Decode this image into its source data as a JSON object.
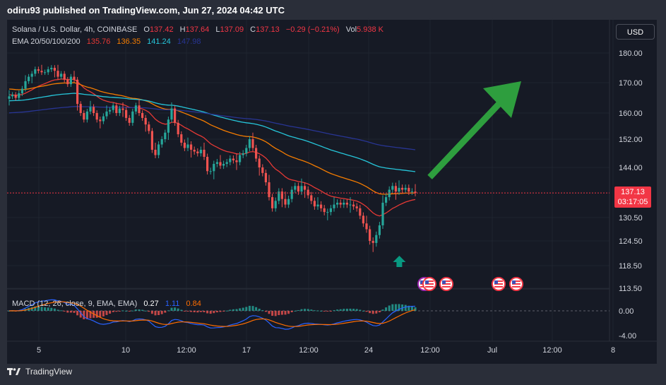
{
  "header": {
    "publisher": "odiru93 published on TradingView.com, Jun 27, 2024 04:42 UTC"
  },
  "legend": {
    "symbol": "Solana / U.S. Dollar, 4h, COINBASE",
    "o_label": "O",
    "o_value": "137.42",
    "h_label": "H",
    "h_value": "137.64",
    "l_label": "L",
    "l_value": "137.09",
    "c_label": "C",
    "c_value": "137.13",
    "change": "−0.29 (−0.21%)",
    "vol_label": "Vol",
    "vol_value": "5.938 K",
    "ema_label": "EMA 20/50/100/200",
    "ema_values": [
      "135.76",
      "136.35",
      "141.24",
      "147.98"
    ],
    "macd_label": "MACD (12, 26, close, 9, EMA, EMA)",
    "macd_values": [
      "0.27",
      "1.11",
      "0.84"
    ]
  },
  "currency_button": "USD",
  "price_tag": {
    "price": "137.13",
    "countdown": "03:17:05"
  },
  "footer": {
    "brand": "TradingView"
  },
  "colors": {
    "up": "#26a69a",
    "down": "#ef5350",
    "ema20": "#e53935",
    "ema50": "#f57c00",
    "ema100": "#26c6da",
    "ema200": "#283593",
    "arrow": "#2e9e3e",
    "macd_line": "#2962ff",
    "signal_line": "#ff6d00"
  },
  "chart_data": {
    "type": "candlestick",
    "title": "Solana / U.S. Dollar, 4h, COINBASE",
    "y_ticks": [
      "180.00",
      "170.00",
      "160.00",
      "152.00",
      "144.00",
      "130.50",
      "124.50",
      "118.50",
      "113.50"
    ],
    "macd_ticks": [
      "0.00",
      "-4.00"
    ],
    "x_ticks": [
      "5",
      "10",
      "12:00",
      "17",
      "12:00",
      "24",
      "12:00",
      "Jul",
      "12:00",
      "8"
    ],
    "ylim": [
      113.5,
      180
    ],
    "close": [
      165.5,
      166.0,
      165.0,
      166.5,
      168.0,
      170.5,
      172.0,
      173.0,
      174.5,
      174.0,
      173.5,
      173.5,
      174.5,
      175.0,
      174.0,
      172.0,
      173.0,
      171.0,
      169.5,
      172.0,
      171.0,
      163.0,
      160.0,
      158.0,
      160.5,
      162.0,
      160.0,
      158.0,
      157.5,
      159.0,
      160.5,
      161.0,
      162.5,
      160.0,
      161.5,
      161.0,
      158.5,
      157.0,
      160.5,
      162.5,
      160.0,
      158.5,
      156.5,
      154.5,
      149.0,
      147.5,
      150.5,
      152.0,
      154.0,
      158.0,
      161.5,
      157.0,
      153.5,
      151.0,
      149.5,
      150.5,
      149.0,
      148.5,
      148.0,
      149.0,
      147.0,
      143.0,
      143.0,
      145.0,
      145.5,
      144.5,
      145.0,
      145.5,
      146.5,
      146.0,
      145.5,
      147.5,
      148.0,
      149.5,
      152.0,
      149.5,
      146.5,
      144.0,
      142.5,
      140.0,
      136.0,
      133.0,
      135.0,
      137.5,
      135.5,
      134.0,
      135.5,
      138.0,
      139.0,
      137.5,
      139.0,
      138.0,
      136.5,
      135.0,
      133.5,
      134.0,
      133.0,
      132.0,
      132.0,
      133.0,
      134.0,
      134.5,
      134.0,
      134.5,
      134.0,
      134.0,
      133.5,
      133.0,
      131.0,
      129.0,
      127.5,
      124.5,
      124.0,
      126.0,
      128.5,
      134.5,
      136.0,
      138.0,
      139.0,
      137.5,
      138.5,
      138.0,
      138.5,
      137.5,
      137.5,
      137.13
    ],
    "annotations": [
      {
        "type": "arrow",
        "label": "up-trend projection",
        "from": [
          126,
          141
        ],
        "to": [
          158,
          170
        ]
      },
      {
        "type": "arrow",
        "label": "buy signal",
        "at": [
          119,
          121
        ]
      }
    ]
  }
}
